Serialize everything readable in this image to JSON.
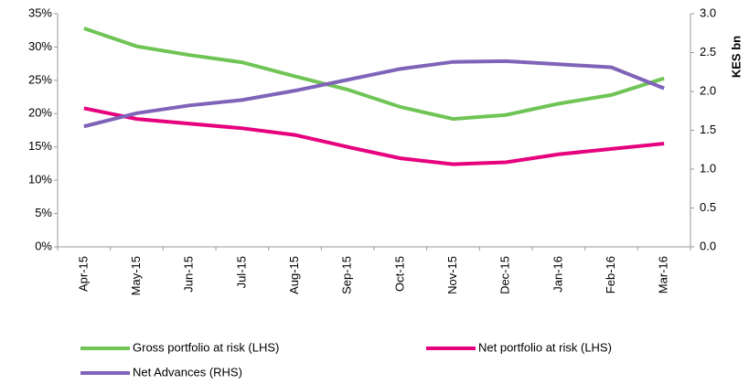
{
  "chart_data": {
    "type": "line",
    "categories": [
      "Apr-15",
      "May-15",
      "Jun-15",
      "Jul-15",
      "Aug-15",
      "Sep-15",
      "Oct-15",
      "Nov-15",
      "Dec-15",
      "Jan-16",
      "Feb-16",
      "Mar-16"
    ],
    "series": [
      {
        "name": "Gross portfolio at risk (LHS)",
        "color": "#70c456",
        "values": [
          32.8,
          30.1,
          28.8,
          27.7,
          25.6,
          23.6,
          21.0,
          19.2,
          19.8,
          21.5,
          22.8,
          25.3
        ]
      },
      {
        "name": "Net portfolio at risk (LHS)",
        "color": "#e6007e",
        "values": [
          20.8,
          19.2,
          18.5,
          17.8,
          16.8,
          15.0,
          13.3,
          12.4,
          12.7,
          13.9,
          14.7,
          15.5
        ]
      },
      {
        "name": "Net Advances (RHS)",
        "color": "#7f63b8",
        "axis": "y2",
        "values": [
          1.55,
          1.72,
          1.82,
          1.89,
          2.01,
          2.15,
          2.29,
          2.38,
          2.39,
          2.35,
          2.31,
          2.04
        ]
      }
    ],
    "ylim": [
      0,
      35
    ],
    "yticks": [
      {
        "value": 0,
        "label": "0%"
      },
      {
        "value": 5,
        "label": "5%"
      },
      {
        "value": 10,
        "label": "10%"
      },
      {
        "value": 15,
        "label": "15%"
      },
      {
        "value": 20,
        "label": "20%"
      },
      {
        "value": 25,
        "label": "25%"
      },
      {
        "value": 30,
        "label": "30%"
      },
      {
        "value": 35,
        "label": "35%"
      }
    ],
    "y2lim": [
      0,
      3
    ],
    "y2ticks": [
      {
        "value": 0,
        "label": "0.0"
      },
      0.5,
      {
        "value": 1,
        "label": "1.0"
      },
      1.5,
      {
        "value": 2,
        "label": "2.0"
      },
      2.5,
      {
        "value": 3,
        "label": "3.0"
      }
    ],
    "y2label": "KES bn",
    "legend": "bottom",
    "grid": false
  }
}
